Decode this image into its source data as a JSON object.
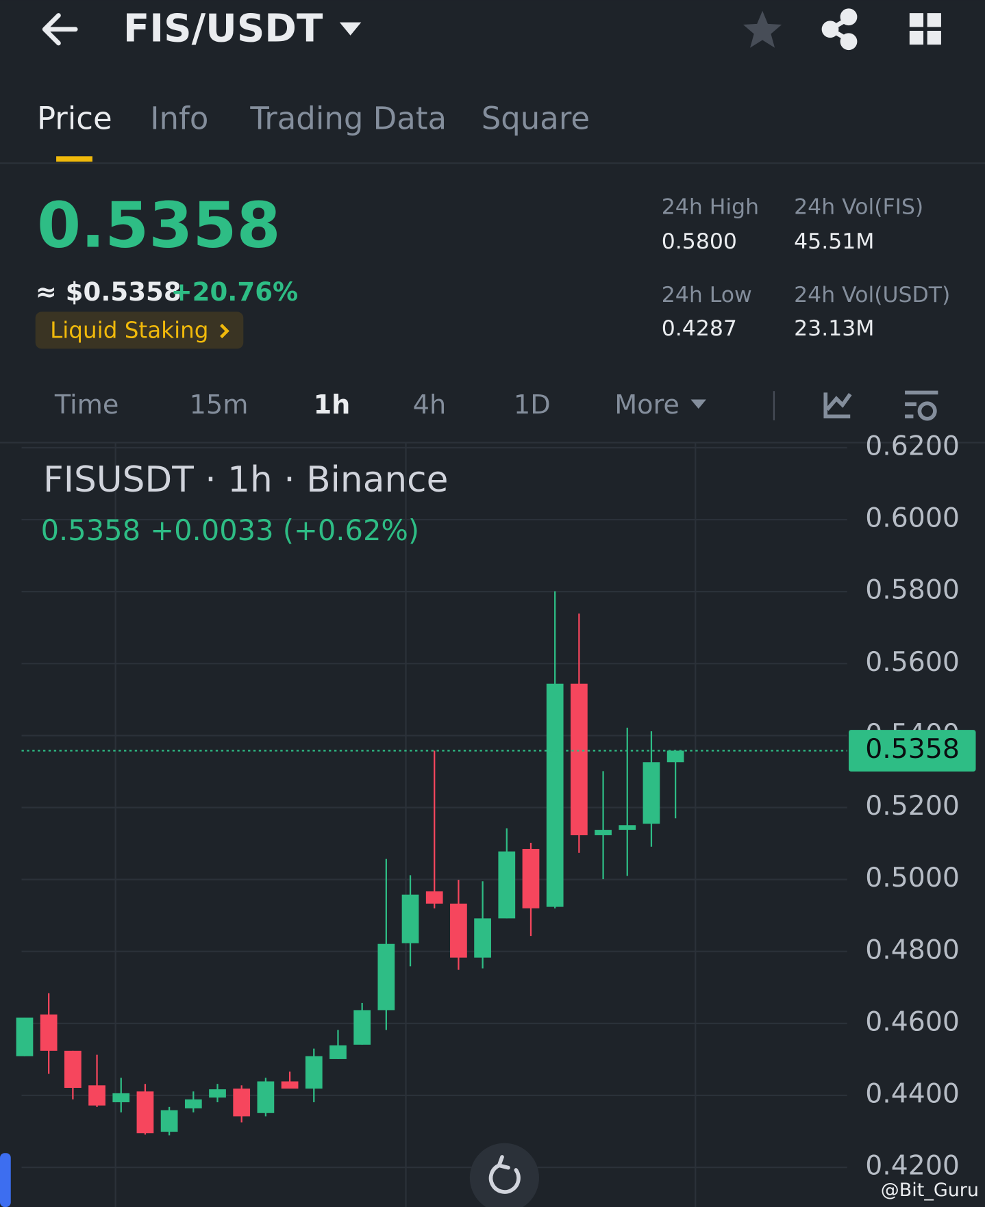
{
  "header": {
    "pair": "FIS/USDT"
  },
  "tabs": [
    "Price",
    "Info",
    "Trading Data",
    "Square"
  ],
  "price": {
    "last": "0.5358",
    "usd": "≈ $0.5358",
    "change": "+20.76%",
    "tag": "Liquid Staking"
  },
  "stats": [
    {
      "label": "24h High",
      "value": "0.5800"
    },
    {
      "label": "24h Vol(FIS)",
      "value": "45.51M"
    },
    {
      "label": "24h Low",
      "value": "0.4287"
    },
    {
      "label": "24h Vol(USDT)",
      "value": "23.13M"
    }
  ],
  "intervals": [
    "Time",
    "15m",
    "1h",
    "4h",
    "1D",
    "More"
  ],
  "chart_data": {
    "type": "candlestick",
    "title": "FISUSDT · 1h · Binance",
    "legend": [
      "0.5358",
      "+0.0033 (+0.62%)"
    ],
    "up_color": "#2ebd85",
    "down_color": "#f6465d",
    "open": [
      0.4509,
      0.4625,
      0.4524,
      0.4428,
      0.4381,
      0.4411,
      0.4299,
      0.4364,
      0.4394,
      0.4419,
      0.4351,
      0.4439,
      0.4419,
      0.4501,
      0.4541,
      0.4637,
      0.4823,
      0.4967,
      0.4933,
      0.4783,
      0.4892,
      0.5085,
      0.4924,
      0.5544,
      0.5123,
      0.5138,
      0.5155,
      0.5326
    ],
    "high": [
      0.4616,
      0.4684,
      0.4524,
      0.4513,
      0.4449,
      0.4432,
      0.4368,
      0.4411,
      0.4432,
      0.4428,
      0.4449,
      0.4466,
      0.453,
      0.4582,
      0.4657,
      0.5057,
      0.5012,
      0.5358,
      0.4999,
      0.4995,
      0.5142,
      0.5102,
      0.5801,
      0.5739,
      0.5301,
      0.5422,
      0.5412,
      0.5358
    ],
    "low": [
      0.4509,
      0.446,
      0.4389,
      0.4368,
      0.4353,
      0.4291,
      0.4289,
      0.4353,
      0.4381,
      0.4325,
      0.4342,
      0.4419,
      0.4381,
      0.4501,
      0.4541,
      0.4582,
      0.4759,
      0.492,
      0.4749,
      0.4753,
      0.4892,
      0.4843,
      0.492,
      0.5074,
      0.5001,
      0.501,
      0.5091,
      0.517
    ],
    "close": [
      0.4616,
      0.4524,
      0.4421,
      0.4372,
      0.4406,
      0.4295,
      0.4359,
      0.4389,
      0.4417,
      0.4342,
      0.4439,
      0.4419,
      0.4509,
      0.4539,
      0.4637,
      0.4821,
      0.4958,
      0.4933,
      0.4783,
      0.4892,
      0.5078,
      0.492,
      0.5544,
      0.5123,
      0.5138,
      0.5151,
      0.5326,
      0.5358
    ],
    "ylim": [
      0.409,
      0.6214
    ],
    "yticks": [
      {
        "value": 0.62,
        "label": "0.6200"
      },
      {
        "value": 0.6,
        "label": "0.6000"
      },
      {
        "value": 0.58,
        "label": "0.5800"
      },
      {
        "value": 0.56,
        "label": "0.5600"
      },
      {
        "value": 0.54,
        "label": "0.5400"
      },
      {
        "value": 0.52,
        "label": "0.5200"
      },
      {
        "value": 0.5,
        "label": "0.5000"
      },
      {
        "value": 0.48,
        "label": "0.4800"
      },
      {
        "value": 0.46,
        "label": "0.4600"
      },
      {
        "value": 0.44,
        "label": "0.4400"
      },
      {
        "value": 0.42,
        "label": "0.4200"
      }
    ],
    "grid": true,
    "price_line": {
      "value": 0.5358,
      "label": "0.5358"
    }
  },
  "watermark": "@Bit_Guru"
}
